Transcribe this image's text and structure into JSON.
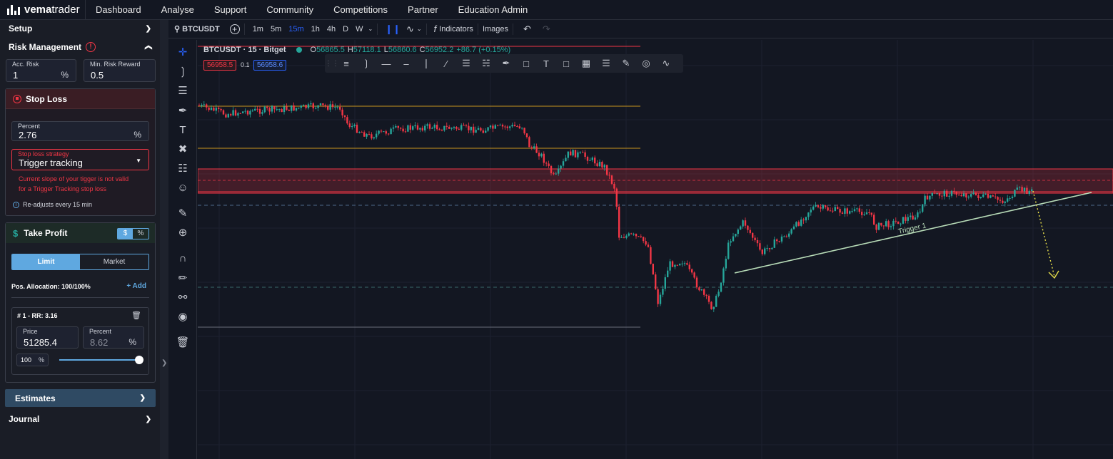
{
  "app": {
    "logo_bold": "vema",
    "logo_light": "trader",
    "nav": [
      "Dashboard",
      "Analyse",
      "Support",
      "Community",
      "Competitions",
      "Partner",
      "Education Admin"
    ]
  },
  "sidebar": {
    "setup": "Setup",
    "risk_management": "Risk Management",
    "acc_risk": {
      "label": "Acc. Risk",
      "value": "1",
      "unit": "%"
    },
    "min_rr": {
      "label": "Min. Risk Reward",
      "value": "0.5"
    },
    "stop_loss": {
      "title": "Stop Loss",
      "percent": {
        "label": "Percent",
        "value": "2.76",
        "unit": "%"
      },
      "strategy": {
        "label": "Stop loss strategy",
        "value": "Trigger tracking"
      },
      "error_line1": "Current slope of your tigger is not valid",
      "error_line2": "for a Trigger Tracking stop loss",
      "info": "Re-adjusts every 15 min"
    },
    "take_profit": {
      "title": "Take Profit",
      "currency": "$",
      "percent_toggle": "%",
      "limit": "Limit",
      "market": "Market",
      "allocation": "Pos. Allocation: 100/100%",
      "add": "+ Add",
      "entry_title": "# 1 - RR: 3.16",
      "price": {
        "label": "Price",
        "value": "51285.4"
      },
      "percent": {
        "label": "Percent",
        "value": "8.62",
        "unit": "%"
      },
      "alloc_value": "100",
      "alloc_unit": "%",
      "slider_level": 1.0
    },
    "estimates": "Estimates",
    "journal": "Journal"
  },
  "toolbar": {
    "symbol": "BTCUSDT",
    "timeframes": [
      "1m",
      "5m",
      "15m",
      "1h",
      "4h",
      "D",
      "W"
    ],
    "active_timeframe": "15m",
    "indicators": "Indicators",
    "images": "Images"
  },
  "legend": {
    "title": "BTCUSDT · 15 · Bitget",
    "o_label": "O",
    "o": "56865.5",
    "h_label": "H",
    "h": "57118.1",
    "l_label": "L",
    "l": "56860.6",
    "c_label": "C",
    "c": "56952.2",
    "change": "+86.7 (+0.15%)",
    "bid": "56958.5",
    "spread": "0.1",
    "ask": "56958.6"
  },
  "chart": {
    "trigger_label": "Trigger 1",
    "colors": {
      "up": "#26a69a",
      "down": "#f23645",
      "orange": "#c8961e",
      "trigger": "#b8dcb8",
      "projection": "#e8e04a"
    }
  }
}
